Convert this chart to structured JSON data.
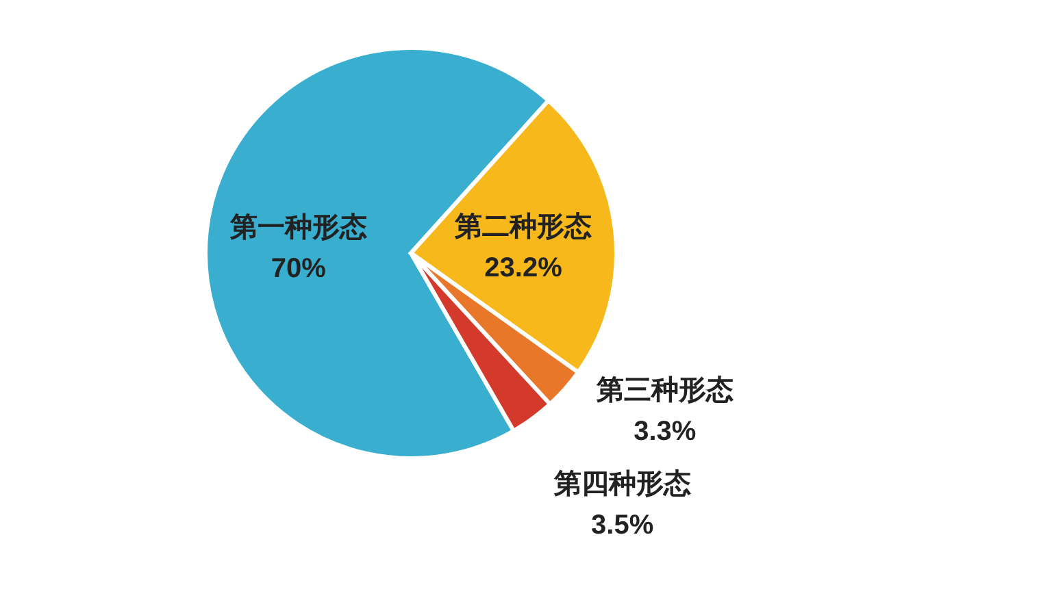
{
  "chart_data": {
    "type": "pie",
    "categories": [
      "第一种形态",
      "第二种形态",
      "第三种形态",
      "第四种形态"
    ],
    "values": [
      70,
      23.2,
      3.3,
      3.5
    ],
    "colors": [
      "#3aaecf",
      "#f7b81c",
      "#e8772a",
      "#d43a2b"
    ],
    "value_labels": [
      "70%",
      "23.2%",
      "3.3%",
      "3.5%"
    ],
    "legend": false
  }
}
